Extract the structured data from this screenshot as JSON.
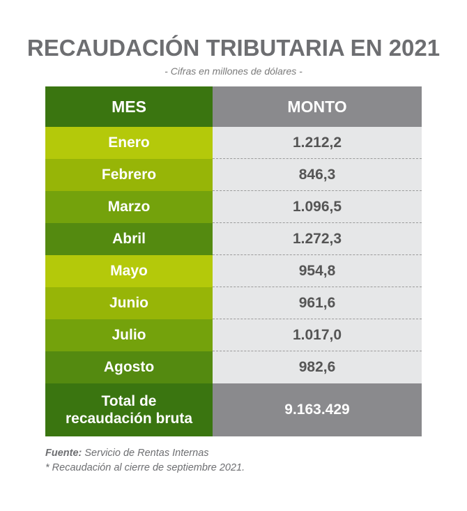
{
  "title": "RECAUDACIÓN TRIBUTARIA EN 2021",
  "subtitle": "- Cifras en millones de dólares -",
  "colors": {
    "header_green": "#3a7510",
    "header_gray": "#8a8a8d",
    "row_light_lime": "#b4c90a",
    "row_lime": "#97b507",
    "row_green": "#74a20c",
    "row_dark_green": "#548a10",
    "value_bg": "#e6e7e8",
    "title_gray": "#6d6e71"
  },
  "chart_data": {
    "type": "table",
    "columns": [
      "MES",
      "MONTO"
    ],
    "rows": [
      {
        "mes": "Enero",
        "monto": "1.212,2"
      },
      {
        "mes": "Febrero",
        "monto": "846,3"
      },
      {
        "mes": "Marzo",
        "monto": "1.096,5"
      },
      {
        "mes": "Abril",
        "monto": "1.272,3"
      },
      {
        "mes": "Mayo",
        "monto": "954,8"
      },
      {
        "mes": "Junio",
        "monto": "961,6"
      },
      {
        "mes": "Julio",
        "monto": "1.017,0"
      },
      {
        "mes": "Agosto",
        "monto": "982,6"
      }
    ],
    "total": {
      "label_line1": "Total de",
      "label_line2": "recaudación bruta",
      "value": "9.163.429"
    }
  },
  "footer": {
    "source_label": "Fuente:",
    "source_text": " Servicio de Rentas Internas",
    "note": "* Recaudación al cierre de septiembre 2021."
  }
}
